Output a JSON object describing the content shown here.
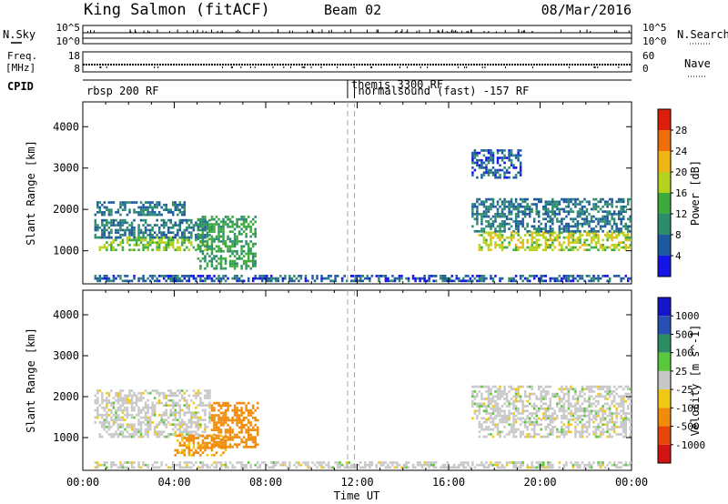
{
  "header": {
    "title": "King Salmon (fitACF)",
    "beam": "Beam 02",
    "date": "08/Mar/2016"
  },
  "top_panels": {
    "nsky_label": "N.Sky",
    "nsearch_label": "N.Search",
    "freq_label_1": "Freq.",
    "freq_label_2": "[MHz]",
    "nave_label": "Nave",
    "cpid_label": "CPID",
    "nsky_ticks_left": [
      "10^5",
      "10^0"
    ],
    "nsky_ticks_right": [
      "10^5",
      "10^0"
    ],
    "freq_ticks": [
      "18",
      "8"
    ],
    "nave_ticks": [
      "60",
      "0"
    ]
  },
  "cpid": {
    "segments": [
      {
        "label": "rbsp 200 RF",
        "start": 0,
        "end": 11.58
      },
      {
        "label": "themis 3300 RF",
        "start": 11.58,
        "end": 11.88
      },
      {
        "label": "normalsound (fast) -157 RF",
        "start": 11.88,
        "end": 24
      }
    ]
  },
  "colors": {
    "power_scale": [
      "#1414e6",
      "#1e5aa0",
      "#2d8c6e",
      "#3caa3c",
      "#b4d21e",
      "#f0b414",
      "#f06e0a",
      "#dc1e0a"
    ],
    "velocity_scale": [
      "#1414c8",
      "#2850b4",
      "#2d8c64",
      "#5ac83c",
      "#c8c8c8",
      "#f0c814",
      "#f08c0a",
      "#e6460a",
      "#d21414"
    ]
  },
  "chart_data": [
    {
      "type": "heatmap",
      "name": "power",
      "xlabel": "",
      "ylabel": "Slant Range [km]",
      "xlim": [
        0,
        24
      ],
      "ylim": [
        200,
        4600
      ],
      "yticks": [
        1000,
        2000,
        3000,
        4000
      ],
      "colorbar_label": "Power [dB]",
      "colorbar_ticks": [
        "4",
        "8",
        "12",
        "16",
        "20",
        "24",
        "28"
      ],
      "regions": [
        {
          "x": [
            0.7,
            5.4
          ],
          "y": [
            1050,
            1350
          ],
          "value": 16
        },
        {
          "x": [
            0.5,
            5.5
          ],
          "y": [
            1350,
            1800
          ],
          "value": 8
        },
        {
          "x": [
            0.5,
            4.5
          ],
          "y": [
            1900,
            2200
          ],
          "value": 8
        },
        {
          "x": [
            5.0,
            7.5
          ],
          "y": [
            600,
            1900
          ],
          "value": 12
        },
        {
          "x": [
            17.3,
            24.0
          ],
          "y": [
            1050,
            1500
          ],
          "value": 18
        },
        {
          "x": [
            17.0,
            24.0
          ],
          "y": [
            1500,
            2300
          ],
          "value": 8
        },
        {
          "x": [
            17.0,
            19.2
          ],
          "y": [
            2800,
            3500
          ],
          "value": 6
        },
        {
          "x": [
            0.5,
            24.0
          ],
          "y": [
            300,
            450
          ],
          "value": 6
        }
      ]
    },
    {
      "type": "heatmap",
      "name": "velocity",
      "xlabel": "Time UT",
      "ylabel": "Slant Range [km]",
      "xlim": [
        0,
        24
      ],
      "ylim": [
        200,
        4600
      ],
      "yticks": [
        1000,
        2000,
        3000,
        4000
      ],
      "xticks": [
        "00:00",
        "04:00",
        "08:00",
        "12:00",
        "16:00",
        "20:00",
        "00:00"
      ],
      "colorbar_label": "Velocity [m s^-1]",
      "colorbar_ticks": [
        "1000",
        "500",
        "100",
        "25",
        "-25",
        "-100",
        "-500",
        "-1000"
      ],
      "regions": [
        {
          "x": [
            0.7,
            5.4
          ],
          "y": [
            1050,
            1400
          ],
          "value": 0
        },
        {
          "x": [
            0.5,
            5.5
          ],
          "y": [
            1400,
            2200
          ],
          "value": 0
        },
        {
          "x": [
            4.0,
            6.2
          ],
          "y": [
            600,
            1100
          ],
          "value": -120
        },
        {
          "x": [
            5.6,
            7.6
          ],
          "y": [
            800,
            1900
          ],
          "value": -300
        },
        {
          "x": [
            17.3,
            24.0
          ],
          "y": [
            1050,
            1500
          ],
          "value": 0
        },
        {
          "x": [
            17.0,
            24.0
          ],
          "y": [
            1500,
            2300
          ],
          "value": 0
        },
        {
          "x": [
            0.5,
            24.0
          ],
          "y": [
            300,
            450
          ],
          "value": 0
        }
      ]
    }
  ]
}
